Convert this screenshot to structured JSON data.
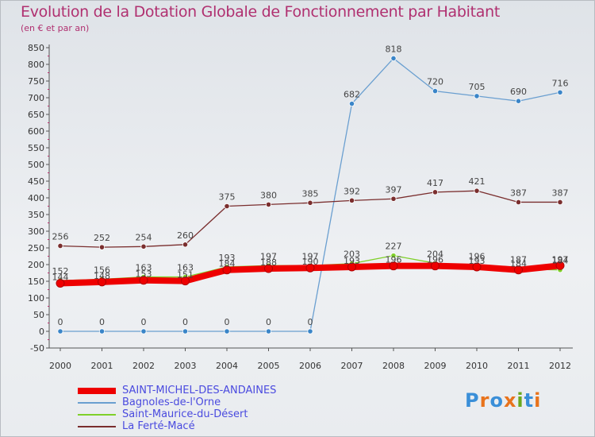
{
  "title": "Evolution de la Dotation Globale de Fonctionnement par Habitant",
  "subtitle": "(en € et par an)",
  "brand": {
    "text": "Proxiti",
    "colors": [
      "#3a8fd8",
      "#e8731c",
      "#3a8fd8",
      "#e8731c",
      "#6aa81e",
      "#3a8fd8",
      "#e8731c"
    ]
  },
  "chart_data": {
    "type": "line",
    "title": "Evolution de la Dotation Globale de Fonctionnement par Habitant",
    "subtitle": "(en € et par an)",
    "xlabel": "",
    "ylabel": "",
    "categories": [
      "2000",
      "2001",
      "2002",
      "2003",
      "2004",
      "2005",
      "2006",
      "2007",
      "2008",
      "2009",
      "2010",
      "2011",
      "2012"
    ],
    "ylim": [
      -50,
      850
    ],
    "yticks": [
      -50,
      0,
      50,
      100,
      150,
      200,
      250,
      300,
      350,
      400,
      450,
      500,
      550,
      600,
      650,
      700,
      750,
      800,
      850
    ],
    "grid": false,
    "legend": "bottom-left",
    "series": [
      {
        "name": "Bagnoles-de-l'Orne",
        "color": "#6a9fd0",
        "marker": "#3a85c8",
        "values": [
          0,
          0,
          0,
          0,
          0,
          0,
          0,
          682,
          818,
          720,
          705,
          690,
          716
        ],
        "labels": [
          "0",
          "0",
          "0",
          "0",
          "0",
          "0",
          "0",
          "682",
          "818",
          "720",
          "705",
          "690",
          "716"
        ]
      },
      {
        "name": "La Ferté-Macé",
        "color": "#7a2e2e",
        "marker": "#7a2e2e",
        "values": [
          256,
          252,
          254,
          260,
          375,
          380,
          385,
          392,
          397,
          417,
          421,
          387,
          387
        ],
        "labels": [
          "256",
          "252",
          "254",
          "260",
          "375",
          "380",
          "385",
          "392",
          "397",
          "417",
          "421",
          "387",
          "387"
        ]
      },
      {
        "name": "Saint-Maurice-du-Désert",
        "color": "#7fd02a",
        "marker": "#7fd02a",
        "values": [
          152,
          156,
          163,
          163,
          193,
          197,
          197,
          203,
          227,
          204,
          196,
          187,
          184
        ],
        "labels": [
          "152",
          "156",
          "163",
          "163",
          "193",
          "197",
          "197",
          "203",
          "227",
          "204",
          "196",
          "187",
          "184"
        ]
      },
      {
        "name": "SAINT-MICHEL-DES-ANDAINES",
        "color": "#ee0000",
        "marker": "#ee0000",
        "values": [
          144,
          148,
          153,
          151,
          184,
          188,
          190,
          193,
          196,
          196,
          193,
          184,
          197
        ],
        "labels": [
          "144",
          "148",
          "153",
          "151",
          "184",
          "188",
          "190",
          "193",
          "196",
          "196",
          "193",
          "184",
          "197"
        ]
      }
    ]
  },
  "legend_items": [
    {
      "name": "SAINT-MICHEL-DES-ANDAINES",
      "color": "#ee0000",
      "thick": true
    },
    {
      "name": "Bagnoles-de-l'Orne",
      "color": "#6a9fd0",
      "thick": false
    },
    {
      "name": "Saint-Maurice-du-Désert",
      "color": "#7fd02a",
      "thick": false
    },
    {
      "name": "La Ferté-Macé",
      "color": "#7a2e2e",
      "thick": false
    }
  ]
}
